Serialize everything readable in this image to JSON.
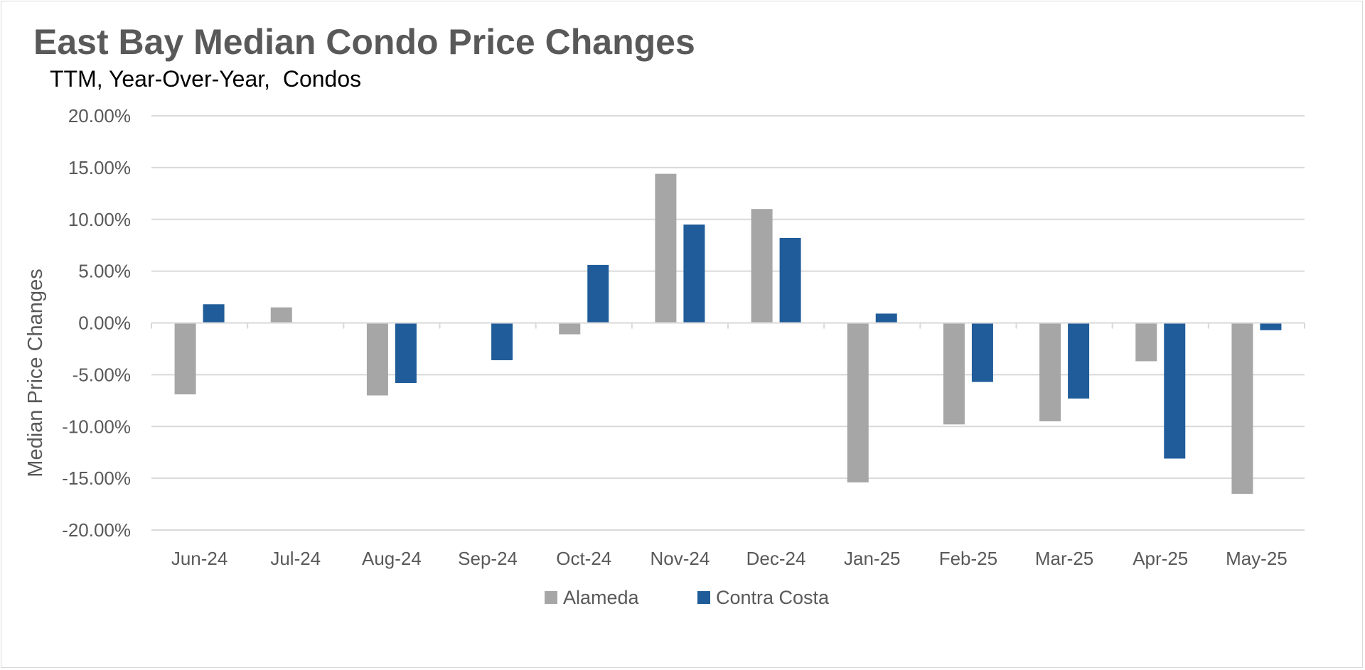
{
  "chart_data": {
    "type": "bar",
    "title": "East Bay Median Condo Price Changes",
    "subtitle": "TTM, Year-Over-Year,  Condos",
    "xlabel": "",
    "ylabel": "Median Price Changes",
    "ylim": [
      -20,
      20
    ],
    "yticks": [
      20,
      15,
      10,
      5,
      0,
      -5,
      -10,
      -15,
      -20
    ],
    "ytick_labels": [
      "20.00%",
      "15.00%",
      "10.00%",
      "5.00%",
      "0.00%",
      "-5.00%",
      "-10.00%",
      "-15.00%",
      "-20.00%"
    ],
    "categories": [
      "Jun-24",
      "Jul-24",
      "Aug-24",
      "Sep-24",
      "Oct-24",
      "Nov-24",
      "Dec-24",
      "Jan-25",
      "Feb-25",
      "Mar-25",
      "Apr-25",
      "May-25"
    ],
    "series": [
      {
        "name": "Alameda",
        "color": "#a6a6a6",
        "values": [
          -6.9,
          1.5,
          -7.0,
          0.0,
          -1.1,
          14.4,
          11.0,
          -15.4,
          -9.8,
          -9.5,
          -3.7,
          -16.5
        ]
      },
      {
        "name": "Contra Costa",
        "color": "#1f5c99",
        "values": [
          1.8,
          0.0,
          -5.8,
          -3.6,
          5.6,
          9.5,
          8.2,
          0.9,
          -5.7,
          -7.3,
          -13.1,
          -0.7
        ]
      }
    ],
    "grid": true,
    "legend_position": "bottom"
  }
}
